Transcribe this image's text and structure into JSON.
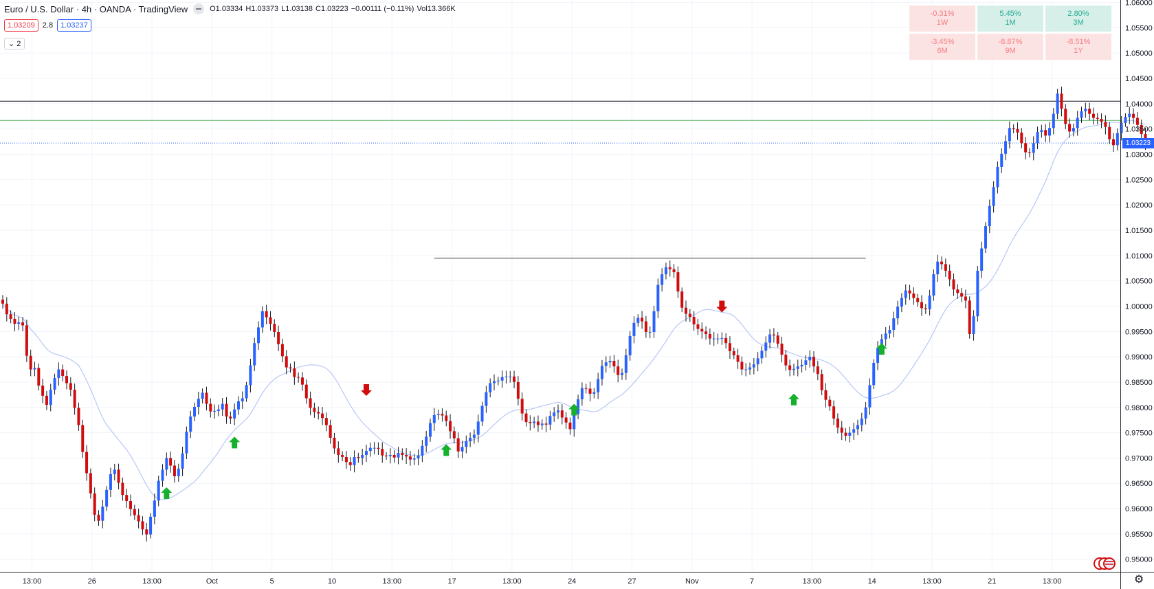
{
  "header": {
    "symbol_title": "Euro / U.S. Dollar · 4h · OANDA · TradingView",
    "ohlc": [
      {
        "label": "O",
        "value": "1.03334"
      },
      {
        "label": "H",
        "value": "1.03373"
      },
      {
        "label": "L",
        "value": "1.03138"
      },
      {
        "label": "C",
        "value": "1.03223"
      },
      {
        "label": "",
        "value": "−0.00111 (−0.11%)"
      },
      {
        "label": "Vol",
        "value": "13.366K"
      }
    ],
    "bid": "1.03209",
    "spread": "2.8",
    "ask": "1.03237",
    "indicator_count": "2"
  },
  "performance": [
    {
      "value": "-0.31%",
      "period": "1W",
      "dir": "neg"
    },
    {
      "value": "5.45%",
      "period": "1M",
      "dir": "pos"
    },
    {
      "value": "2.80%",
      "period": "3M",
      "dir": "pos"
    },
    {
      "value": "-3.45%",
      "period": "6M",
      "dir": "neg"
    },
    {
      "value": "-8.87%",
      "period": "9M",
      "dir": "neg"
    },
    {
      "value": "-8.51%",
      "period": "1Y",
      "dir": "neg"
    }
  ],
  "current_price_label": "1.03223",
  "colors": {
    "up": "#2962ff",
    "down": "#d10c0c",
    "ma": "#b8c7f5",
    "green_line": "#4caf50",
    "black_line": "#131722",
    "arrow_up": "#16b02c",
    "arrow_down": "#d10c0c",
    "price_tag": "#2962ff"
  },
  "chart_data": {
    "type": "candlestick",
    "y_ticks": [
      "1.06000",
      "1.05500",
      "1.05000",
      "1.04500",
      "1.04000",
      "1.03500",
      "1.03000",
      "1.02500",
      "1.02000",
      "1.01500",
      "1.01000",
      "1.00500",
      "1.00000",
      "0.99500",
      "0.99000",
      "0.98500",
      "0.98000",
      "0.97500",
      "0.97000",
      "0.96500",
      "0.96000",
      "0.95500",
      "0.95000"
    ],
    "ylim": [
      0.9475,
      1.0615
    ],
    "x_ticks": [
      "13:00",
      "26",
      "13:00",
      "Oct",
      "5",
      "10",
      "13:00",
      "17",
      "13:00",
      "24",
      "27",
      "Nov",
      "7",
      "13:00",
      "14",
      "13:00",
      "21",
      "13:00"
    ],
    "horizontal_lines": [
      1.0405,
      1.0367
    ],
    "last_price": 1.03223,
    "resistance_line": {
      "from_index": 108,
      "to_index": 216,
      "price": 1.0095
    },
    "close": [
      1.0005,
      0.9984,
      0.9975,
      0.9965,
      0.9968,
      0.9962,
      0.9902,
      0.9875,
      0.9878,
      0.9843,
      0.9823,
      0.9805,
      0.9835,
      0.9858,
      0.9875,
      0.9862,
      0.9848,
      0.9835,
      0.9799,
      0.9765,
      0.9712,
      0.967,
      0.963,
      0.9588,
      0.9576,
      0.9604,
      0.9637,
      0.9668,
      0.9677,
      0.9651,
      0.9627,
      0.9615,
      0.9599,
      0.9587,
      0.9575,
      0.9559,
      0.9549,
      0.9584,
      0.9616,
      0.9655,
      0.9677,
      0.97,
      0.9685,
      0.9664,
      0.9679,
      0.9709,
      0.9752,
      0.9782,
      0.9801,
      0.9817,
      0.9829,
      0.9807,
      0.9792,
      0.9793,
      0.9796,
      0.9807,
      0.9782,
      0.9778,
      0.9796,
      0.9812,
      0.9818,
      0.9844,
      0.9883,
      0.9927,
      0.9958,
      0.999,
      0.9978,
      0.9965,
      0.9949,
      0.9925,
      0.9901,
      0.9879,
      0.9877,
      0.986,
      0.9859,
      0.9845,
      0.9818,
      0.9799,
      0.9791,
      0.9788,
      0.9779,
      0.9765,
      0.974,
      0.9719,
      0.9706,
      0.9702,
      0.9692,
      0.9686,
      0.9702,
      0.97,
      0.9706,
      0.9714,
      0.972,
      0.972,
      0.9718,
      0.9705,
      0.9704,
      0.9706,
      0.9701,
      0.971,
      0.9706,
      0.9703,
      0.9697,
      0.9699,
      0.9705,
      0.9724,
      0.9742,
      0.9769,
      0.9785,
      0.9787,
      0.9784,
      0.9773,
      0.9753,
      0.9739,
      0.9713,
      0.9722,
      0.9733,
      0.974,
      0.9746,
      0.9772,
      0.9803,
      0.983,
      0.9848,
      0.9852,
      0.9853,
      0.986,
      0.9861,
      0.9861,
      0.985,
      0.9817,
      0.9788,
      0.9771,
      0.9769,
      0.9772,
      0.9765,
      0.9768,
      0.9766,
      0.9783,
      0.979,
      0.9794,
      0.978,
      0.977,
      0.9757,
      0.9787,
      0.9816,
      0.9838,
      0.9837,
      0.9827,
      0.983,
      0.9856,
      0.9882,
      0.9889,
      0.9892,
      0.9881,
      0.9864,
      0.9868,
      0.9903,
      0.9941,
      0.9967,
      0.9977,
      0.997,
      0.9949,
      0.9949,
      0.999,
      1.0042,
      1.0063,
      1.0077,
      1.0073,
      1.0067,
      1.0029,
      0.9997,
      0.9985,
      0.9979,
      0.9964,
      0.9955,
      0.995,
      0.9945,
      0.9936,
      0.9936,
      0.9936,
      0.9937,
      0.9927,
      0.9911,
      0.9903,
      0.989,
      0.9875,
      0.9875,
      0.9879,
      0.9885,
      0.9897,
      0.9912,
      0.9928,
      0.9944,
      0.9942,
      0.9926,
      0.9904,
      0.9883,
      0.9874,
      0.9876,
      0.9881,
      0.9884,
      0.9893,
      0.99,
      0.9881,
      0.9866,
      0.9834,
      0.9815,
      0.9802,
      0.9778,
      0.976,
      0.975,
      0.9744,
      0.975,
      0.9757,
      0.9765,
      0.9778,
      0.98,
      0.9844,
      0.9888,
      0.9918,
      0.9935,
      0.9946,
      0.9953,
      0.9976,
      0.9999,
      1.0016,
      1.0031,
      1.0025,
      1.0016,
      1.0008,
      0.9996,
      0.9994,
      1.0021,
      1.0063,
      1.0088,
      1.0083,
      1.007,
      1.0053,
      1.0033,
      1.0026,
      1.0019,
      1.0011,
      0.9945,
      0.998,
      1.007,
      1.0114,
      1.0158,
      1.0198,
      1.0235,
      1.0275,
      1.0301,
      1.0326,
      1.0352,
      1.035,
      1.0343,
      1.0322,
      1.0304,
      1.0303,
      1.0322,
      1.0344,
      1.0348,
      1.0337,
      1.0352,
      1.038,
      1.042,
      1.039,
      1.036,
      1.0345,
      1.0352,
      1.0372,
      1.0385,
      1.039,
      1.038,
      1.0372,
      1.037,
      1.0364,
      1.0354,
      1.033,
      1.0318,
      1.0342,
      1.0362,
      1.0374,
      1.038,
      1.0372,
      1.0358,
      1.034,
      1.03223
    ]
  },
  "markers": {
    "up_arrows": [
      {
        "index": 41,
        "price": 0.963
      },
      {
        "index": 58,
        "price": 0.973
      },
      {
        "index": 111,
        "price": 0.9715
      },
      {
        "index": 143,
        "price": 0.9795
      },
      {
        "index": 198,
        "price": 0.9815
      },
      {
        "index": 220,
        "price": 0.9915
      }
    ],
    "down_arrows": [
      {
        "index": 91,
        "price": 0.9835
      },
      {
        "index": 180,
        "price": 1.0
      }
    ]
  }
}
